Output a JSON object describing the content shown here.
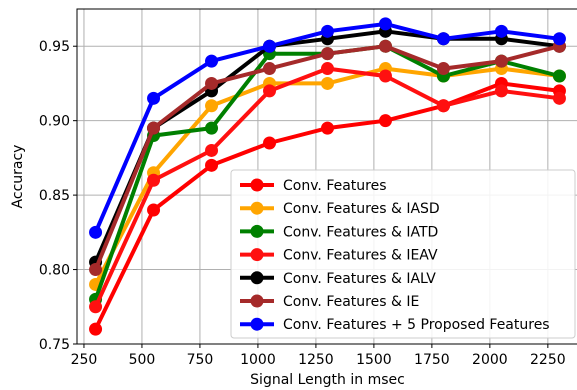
{
  "chart_data": {
    "type": "line",
    "xlabel": "Signal Length in msec",
    "ylabel": "Accuracy",
    "xlim": [
      220,
      2380
    ],
    "ylim": [
      0.75,
      0.975
    ],
    "xticks": [
      250,
      500,
      750,
      1000,
      1250,
      1500,
      1750,
      2000,
      2250
    ],
    "xtick_labels": [
      "250",
      "500",
      "750",
      "1000",
      "1250",
      "1500",
      "1750",
      "2000",
      "2250"
    ],
    "yticks": [
      0.75,
      0.8,
      0.85,
      0.9,
      0.95
    ],
    "ytick_labels": [
      "0.75",
      "0.80",
      "0.85",
      "0.90",
      "0.95"
    ],
    "grid": true,
    "legend_position": "bottom-right",
    "x": [
      300,
      550,
      800,
      1050,
      1300,
      1550,
      1800,
      2050,
      2300
    ],
    "series": [
      {
        "name": "Conv. Features",
        "color": "#ff0000",
        "values": [
          0.76,
          0.84,
          0.87,
          0.885,
          0.895,
          0.9,
          0.91,
          0.925,
          0.92
        ]
      },
      {
        "name": "Conv. Features & IASD",
        "color": "#ffa500",
        "values": [
          0.79,
          0.865,
          0.91,
          0.925,
          0.925,
          0.935,
          0.93,
          0.935,
          0.93
        ]
      },
      {
        "name": "Conv. Features & IATD",
        "color": "#008000",
        "values": [
          0.78,
          0.89,
          0.895,
          0.945,
          0.945,
          0.95,
          0.93,
          0.94,
          0.93
        ]
      },
      {
        "name": "Conv. Features & IEAV",
        "color": "#ff1010",
        "values": [
          0.775,
          0.86,
          0.88,
          0.92,
          0.935,
          0.93,
          0.91,
          0.92,
          0.915
        ]
      },
      {
        "name": "Conv. Features & IALV",
        "color": "#000000",
        "values": [
          0.805,
          0.895,
          0.92,
          0.95,
          0.955,
          0.96,
          0.955,
          0.955,
          0.95
        ]
      },
      {
        "name": "Conv. Features & IE",
        "color": "#a52a2a",
        "values": [
          0.8,
          0.895,
          0.925,
          0.935,
          0.945,
          0.95,
          0.935,
          0.94,
          0.95
        ]
      },
      {
        "name": "Conv. Features + 5 Proposed Features",
        "color": "#0000ff",
        "values": [
          0.825,
          0.915,
          0.94,
          0.95,
          0.96,
          0.965,
          0.955,
          0.96,
          0.955
        ]
      }
    ]
  }
}
